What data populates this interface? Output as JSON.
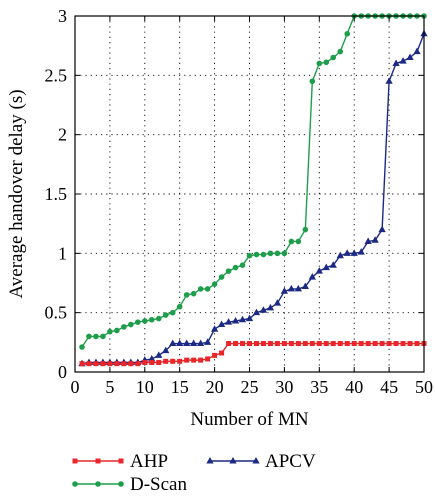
{
  "chart_data": {
    "type": "line",
    "title": "",
    "xlabel": "Number of MN",
    "ylabel": "Average handover delay (s)",
    "xlim": [
      0,
      50
    ],
    "ylim": [
      0,
      3
    ],
    "xticks": [
      "0",
      "5",
      "10",
      "15",
      "20",
      "25",
      "30",
      "35",
      "40",
      "45",
      "50"
    ],
    "yticks": [
      "0",
      "0.5",
      "1",
      "1.5",
      "2",
      "2.5",
      "3"
    ],
    "grid": "dotted",
    "legend_position": "bottom",
    "x": [
      1,
      2,
      3,
      4,
      5,
      6,
      7,
      8,
      9,
      10,
      11,
      12,
      13,
      14,
      15,
      16,
      17,
      18,
      19,
      20,
      21,
      22,
      23,
      24,
      25,
      26,
      27,
      28,
      29,
      30,
      31,
      32,
      33,
      34,
      35,
      36,
      37,
      38,
      39,
      40,
      41,
      42,
      43,
      44,
      45,
      46,
      47,
      48,
      49,
      50
    ],
    "series": [
      {
        "name": "AHP",
        "color": "#e8262b",
        "marker": "square",
        "values": [
          0.07,
          0.07,
          0.07,
          0.07,
          0.07,
          0.07,
          0.07,
          0.07,
          0.07,
          0.08,
          0.08,
          0.08,
          0.09,
          0.09,
          0.09,
          0.1,
          0.1,
          0.1,
          0.11,
          0.14,
          0.16,
          0.24,
          0.24,
          0.24,
          0.24,
          0.24,
          0.24,
          0.24,
          0.24,
          0.24,
          0.24,
          0.24,
          0.24,
          0.24,
          0.24,
          0.24,
          0.24,
          0.24,
          0.24,
          0.24,
          0.24,
          0.24,
          0.24,
          0.24,
          0.24,
          0.24,
          0.24,
          0.24,
          0.24,
          0.24
        ]
      },
      {
        "name": "APCV",
        "color": "#1c2a84",
        "marker": "triangle",
        "values": [
          0.07,
          0.08,
          0.08,
          0.08,
          0.08,
          0.08,
          0.08,
          0.08,
          0.08,
          0.1,
          0.11,
          0.14,
          0.18,
          0.24,
          0.24,
          0.24,
          0.24,
          0.24,
          0.25,
          0.36,
          0.4,
          0.42,
          0.43,
          0.44,
          0.45,
          0.5,
          0.52,
          0.54,
          0.58,
          0.68,
          0.7,
          0.7,
          0.72,
          0.8,
          0.85,
          0.88,
          0.9,
          0.98,
          1.0,
          1.0,
          1.01,
          1.1,
          1.11,
          1.2,
          2.45,
          2.6,
          2.62,
          2.65,
          2.7,
          2.85
        ]
      },
      {
        "name": "D-Scan",
        "color": "#1e9e4a",
        "marker": "circle",
        "values": [
          0.21,
          0.3,
          0.3,
          0.3,
          0.34,
          0.35,
          0.38,
          0.4,
          0.42,
          0.43,
          0.44,
          0.45,
          0.48,
          0.5,
          0.55,
          0.65,
          0.66,
          0.7,
          0.7,
          0.74,
          0.8,
          0.85,
          0.88,
          0.9,
          0.98,
          0.99,
          0.99,
          1.0,
          1.0,
          1.0,
          1.1,
          1.1,
          1.2,
          2.45,
          2.6,
          2.61,
          2.65,
          2.7,
          2.85,
          3.0,
          3.0,
          3.0,
          3.0,
          3.0,
          3.0,
          3.0,
          3.0,
          3.0,
          3.0,
          3.0
        ]
      }
    ]
  }
}
